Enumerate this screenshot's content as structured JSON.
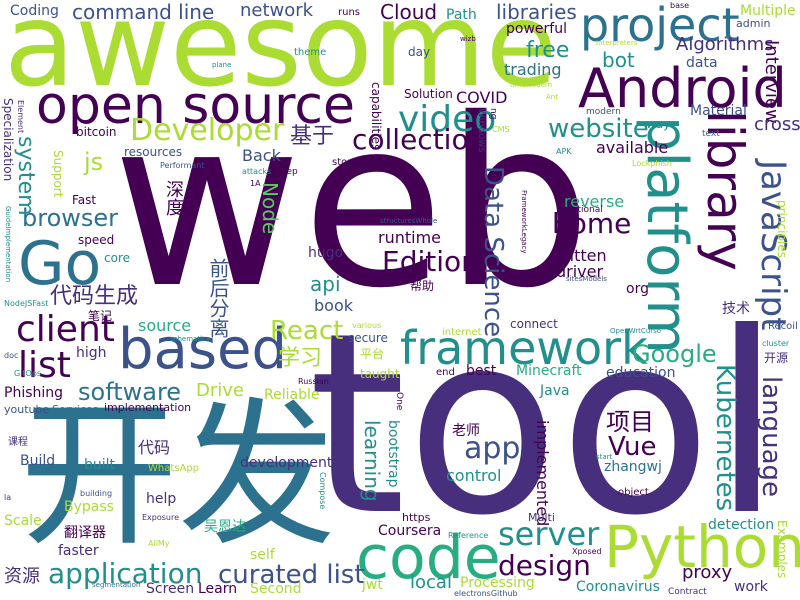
{
  "title": "",
  "palette": {
    "dark_purple": "#440154",
    "indigo": "#472f7d",
    "blue": "#3b528b",
    "steel": "#2c728e",
    "teal": "#21908d",
    "green_teal": "#27ad81",
    "green": "#5dc962",
    "lime": "#aadc32",
    "yellow_green": "#c8e020"
  },
  "words": [
    {
      "text": "web",
      "color": "#440154",
      "vertical": false
    },
    {
      "text": "tool",
      "color": "#472f7d",
      "vertical": false
    },
    {
      "text": "awesome",
      "color": "#aadc32",
      "vertical": false
    },
    {
      "text": "开发",
      "color": "#2c728e",
      "vertical": false
    },
    {
      "text": "open source",
      "color": "#440154",
      "vertical": false
    },
    {
      "text": "Android",
      "color": "#440154",
      "vertical": false
    },
    {
      "text": "project",
      "color": "#2c728e",
      "vertical": false
    },
    {
      "text": "platform",
      "color": "#21908d",
      "vertical": true
    },
    {
      "text": "library",
      "color": "#440154",
      "vertical": true
    },
    {
      "text": "Go",
      "color": "#2c728e",
      "vertical": false
    },
    {
      "text": "based",
      "color": "#3b528b",
      "vertical": false
    },
    {
      "text": "framework",
      "color": "#21908d",
      "vertical": false
    },
    {
      "text": "code",
      "color": "#27ad81",
      "vertical": false
    },
    {
      "text": "Python",
      "color": "#aadc32",
      "vertical": false
    },
    {
      "text": "JavaScript",
      "color": "#3b528b",
      "vertical": true
    },
    {
      "text": "Developer",
      "color": "#aadc32",
      "vertical": false
    },
    {
      "text": "video",
      "color": "#21908d",
      "vertical": false
    },
    {
      "text": "collection",
      "color": "#440154",
      "vertical": false
    },
    {
      "text": "website",
      "color": "#21908d",
      "vertical": false
    },
    {
      "text": "client",
      "color": "#440154",
      "vertical": false
    },
    {
      "text": "list",
      "color": "#440154",
      "vertical": false
    },
    {
      "text": "server",
      "color": "#21908d",
      "vertical": false
    },
    {
      "text": "application",
      "color": "#21908d",
      "vertical": false
    },
    {
      "text": "curated list",
      "color": "#3b528b",
      "vertical": false
    },
    {
      "text": "design",
      "color": "#440154",
      "vertical": false
    },
    {
      "text": "language",
      "color": "#472f7d",
      "vertical": true
    },
    {
      "text": "Kubernetes",
      "color": "#21908d",
      "vertical": true
    },
    {
      "text": "Data Science",
      "color": "#3b528b",
      "vertical": true
    },
    {
      "text": "home",
      "color": "#440154",
      "vertical": false
    },
    {
      "text": "Edition",
      "color": "#440154",
      "vertical": false
    },
    {
      "text": "app",
      "color": "#3b528b",
      "vertical": false
    },
    {
      "text": "Vue",
      "color": "#440154",
      "vertical": false
    },
    {
      "text": "项目",
      "color": "#440154",
      "vertical": false
    },
    {
      "text": "Google",
      "color": "#27ad81",
      "vertical": false
    },
    {
      "text": "React",
      "color": "#aadc32",
      "vertical": false
    },
    {
      "text": "software",
      "color": "#2c728e",
      "vertical": false
    },
    {
      "text": "browser",
      "color": "#2c728e",
      "vertical": false
    },
    {
      "text": "js",
      "color": "#aadc32",
      "vertical": false
    },
    {
      "text": "system",
      "color": "#21908d",
      "vertical": true
    },
    {
      "text": "libraries",
      "color": "#3b528b",
      "vertical": false
    },
    {
      "text": "command line",
      "color": "#3b528b",
      "vertical": false
    },
    {
      "text": "network",
      "color": "#3b528b",
      "vertical": false
    },
    {
      "text": "Cloud",
      "color": "#440154",
      "vertical": false
    },
    {
      "text": "free",
      "color": "#21908d",
      "vertical": false
    },
    {
      "text": "bot",
      "color": "#21908d",
      "vertical": false
    },
    {
      "text": "Algorithms",
      "color": "#472f7d",
      "vertical": false
    },
    {
      "text": "Interview",
      "color": "#440154",
      "vertical": true
    },
    {
      "text": "cross",
      "color": "#472f7d",
      "vertical": false
    },
    {
      "text": "Material",
      "color": "#3b528b",
      "vertical": false
    },
    {
      "text": "trading",
      "color": "#2c728e",
      "vertical": false
    },
    {
      "text": "COVID",
      "color": "#440154",
      "vertical": false
    },
    {
      "text": "基于",
      "color": "#472f7d",
      "vertical": false
    },
    {
      "text": "代码生成",
      "color": "#472f7d",
      "vertical": false
    },
    {
      "text": "前后分离",
      "color": "#3b528b",
      "vertical": true
    },
    {
      "text": "学习",
      "color": "#aadc32",
      "vertical": false
    },
    {
      "text": "Node",
      "color": "#5dc962",
      "vertical": true
    },
    {
      "text": "api",
      "color": "#21908d",
      "vertical": false
    },
    {
      "text": "book",
      "color": "#3b528b",
      "vertical": false
    },
    {
      "text": "source",
      "color": "#27ad81",
      "vertical": false
    },
    {
      "text": "hugo",
      "color": "#472f7d",
      "vertical": false
    },
    {
      "text": "一款",
      "color": "#440154",
      "vertical": false
    },
    {
      "text": "runtime",
      "color": "#440154",
      "vertical": false
    },
    {
      "text": "reverse",
      "color": "#27ad81",
      "vertical": false
    },
    {
      "text": "written",
      "color": "#440154",
      "vertical": false
    },
    {
      "text": "driver",
      "color": "#440154",
      "vertical": false
    },
    {
      "text": "org",
      "color": "#440154",
      "vertical": false
    },
    {
      "text": "技术",
      "color": "#472f7d",
      "vertical": false
    },
    {
      "text": "available",
      "color": "#440154",
      "vertical": false
    },
    {
      "text": "Minecraft",
      "color": "#27ad81",
      "vertical": false
    },
    {
      "text": "education",
      "color": "#3b528b",
      "vertical": false
    },
    {
      "text": "learning",
      "color": "#21908d",
      "vertical": true
    },
    {
      "text": "implemented",
      "color": "#440154",
      "vertical": true
    },
    {
      "text": "bootstrap",
      "color": "#21908d",
      "vertical": true
    },
    {
      "text": "control",
      "color": "#21908d",
      "vertical": false
    },
    {
      "text": "老师",
      "color": "#440154",
      "vertical": false
    },
    {
      "text": "zhangwj",
      "color": "#2c728e",
      "vertical": false
    },
    {
      "text": "proxy",
      "color": "#440154",
      "vertical": false
    },
    {
      "text": "detection",
      "color": "#21908d",
      "vertical": false
    },
    {
      "text": "Coursera",
      "color": "#440154",
      "vertical": false
    },
    {
      "text": "local",
      "color": "#21908d",
      "vertical": false
    },
    {
      "text": "Processing",
      "color": "#aadc32",
      "vertical": false
    },
    {
      "text": "Coronavirus",
      "color": "#21908d",
      "vertical": false
    },
    {
      "text": "work",
      "color": "#472f7d",
      "vertical": false
    },
    {
      "text": "Screen",
      "color": "#472f7d",
      "vertical": false
    },
    {
      "text": "Learn",
      "color": "#440154",
      "vertical": false
    },
    {
      "text": "Second",
      "color": "#aadc32",
      "vertical": false
    },
    {
      "text": "jwt",
      "color": "#aadc32",
      "vertical": false
    },
    {
      "text": "资源",
      "color": "#472f7d",
      "vertical": false
    },
    {
      "text": "faster",
      "color": "#472f7d",
      "vertical": false
    },
    {
      "text": "翻译器",
      "color": "#440154",
      "vertical": false
    },
    {
      "text": "吴恩达",
      "color": "#27ad81",
      "vertical": false
    },
    {
      "text": "self",
      "color": "#aadc32",
      "vertical": false
    },
    {
      "text": "help",
      "color": "#472f7d",
      "vertical": false
    },
    {
      "text": "Scale",
      "color": "#aadc32",
      "vertical": false
    },
    {
      "text": "Bypass",
      "color": "#aadc32",
      "vertical": false
    },
    {
      "text": "development",
      "color": "#472f7d",
      "vertical": false
    },
    {
      "text": "built",
      "color": "#21908d",
      "vertical": false
    },
    {
      "text": "Build",
      "color": "#3b528b",
      "vertical": false
    },
    {
      "text": "代码",
      "color": "#472f7d",
      "vertical": false
    },
    {
      "text": "Phishing",
      "color": "#440154",
      "vertical": false
    },
    {
      "text": "youtube",
      "color": "#3b528b",
      "vertical": false
    },
    {
      "text": "Services",
      "color": "#2c728e",
      "vertical": false
    },
    {
      "text": "implementation",
      "color": "#440154",
      "vertical": false
    },
    {
      "text": "Drive",
      "color": "#aadc32",
      "vertical": false
    },
    {
      "text": "Reliable",
      "color": "#aadc32",
      "vertical": false
    },
    {
      "text": "high",
      "color": "#472f7d",
      "vertical": false
    },
    {
      "text": "secure",
      "color": "#3b528b",
      "vertical": false
    },
    {
      "text": "taught",
      "color": "#aadc32",
      "vertical": false
    },
    {
      "text": "best",
      "color": "#440154",
      "vertical": false
    },
    {
      "text": "Java",
      "color": "#21908d",
      "vertical": false
    },
    {
      "text": "平台",
      "color": "#aadc32",
      "vertical": false
    },
    {
      "text": "connect",
      "color": "#472f7d",
      "vertical": false
    },
    {
      "text": "帮助",
      "color": "#440154",
      "vertical": false
    },
    {
      "text": "深度",
      "color": "#440154",
      "vertical": true
    },
    {
      "text": "Back",
      "color": "#3b528b",
      "vertical": false
    },
    {
      "text": "resources",
      "color": "#3b528b",
      "vertical": false
    },
    {
      "text": "Solution",
      "color": "#440154",
      "vertical": false
    },
    {
      "text": "powerful",
      "color": "#440154",
      "vertical": false
    },
    {
      "text": "capabilities",
      "color": "#440154",
      "vertical": true
    },
    {
      "text": "Windows",
      "color": "#472f7d",
      "vertical": true
    },
    {
      "text": "Path",
      "color": "#21908d",
      "vertical": false
    },
    {
      "text": "runs",
      "color": "#440154",
      "vertical": false
    },
    {
      "text": "Coding",
      "color": "#3b528b",
      "vertical": false
    },
    {
      "text": "data",
      "color": "#3b528b",
      "vertical": false
    },
    {
      "text": "Multiple",
      "color": "#aadc32",
      "vertical": false
    },
    {
      "text": "admin",
      "color": "#3b528b",
      "vertical": false
    },
    {
      "text": "theme",
      "color": "#21908d",
      "vertical": false
    },
    {
      "text": "day",
      "color": "#3b528b",
      "vertical": false
    },
    {
      "text": "bitcoin",
      "color": "#440154",
      "vertical": false
    },
    {
      "text": "Fast",
      "color": "#440154",
      "vertical": false
    },
    {
      "text": "Support",
      "color": "#aadc32",
      "vertical": true
    },
    {
      "text": "Specialization",
      "color": "#472f7d",
      "vertical": true
    },
    {
      "text": "speed",
      "color": "#440154",
      "vertical": false
    },
    {
      "text": "core",
      "color": "#21908d",
      "vertical": false
    },
    {
      "text": "笔记",
      "color": "#440154",
      "vertical": false
    },
    {
      "text": "storage",
      "color": "#440154",
      "vertical": false
    },
    {
      "text": "keep",
      "color": "#440154",
      "vertical": false
    },
    {
      "text": "way",
      "color": "#21908d",
      "vertical": false
    },
    {
      "text": "text",
      "color": "#2c728e",
      "vertical": false
    },
    {
      "text": "modern",
      "color": "#3b528b",
      "vertical": false
    },
    {
      "text": "functional",
      "color": "#440154",
      "vertical": false
    },
    {
      "text": "principles",
      "color": "#aadc32",
      "vertical": true
    },
    {
      "text": "Examples",
      "color": "#aadc32",
      "vertical": true
    },
    {
      "text": "开源",
      "color": "#472f7d",
      "vertical": false
    },
    {
      "text": "Recoil",
      "color": "#3b528b",
      "vertical": false
    },
    {
      "text": "cluster",
      "color": "#21908d",
      "vertical": false
    },
    {
      "text": "Xposed",
      "color": "#440154",
      "vertical": false
    },
    {
      "text": "Multi",
      "color": "#472f7d",
      "vertical": false
    },
    {
      "text": "https",
      "color": "#440154",
      "vertical": false
    },
    {
      "text": "object",
      "color": "#440154",
      "vertical": false
    },
    {
      "text": "start",
      "color": "#21908d",
      "vertical": false
    },
    {
      "text": "Reference",
      "color": "#21908d",
      "vertical": false
    },
    {
      "text": "internet",
      "color": "#aadc32",
      "vertical": false
    },
    {
      "text": "One",
      "color": "#440154",
      "vertical": true
    },
    {
      "text": "end",
      "color": "#440154",
      "vertical": false
    },
    {
      "text": "Russian",
      "color": "#440154",
      "vertical": false
    },
    {
      "text": "WhatsApp",
      "color": "#aadc32",
      "vertical": false
    },
    {
      "text": "Exposure",
      "color": "#472f7d",
      "vertical": false
    },
    {
      "text": "building",
      "color": "#3b528b",
      "vertical": false
    },
    {
      "text": "Compose",
      "color": "#21908d",
      "vertical": true
    },
    {
      "text": "课程",
      "color": "#472f7d",
      "vertical": false
    },
    {
      "text": "segmentation",
      "color": "#2c728e",
      "vertical": false
    },
    {
      "text": "Contract",
      "color": "#472f7d",
      "vertical": false
    },
    {
      "text": "electronsGithub",
      "color": "#3b528b",
      "vertical": false
    },
    {
      "text": "OpenWrtCurso",
      "color": "#21908d",
      "vertical": false
    },
    {
      "text": "GitOps",
      "color": "#21908d",
      "vertical": false
    },
    {
      "text": "doc",
      "color": "#3b528b",
      "vertical": false
    },
    {
      "text": "GuideImplementation",
      "color": "#21908d",
      "vertical": true
    },
    {
      "text": "NodeJSFast",
      "color": "#21908d",
      "vertical": false
    },
    {
      "text": "Element",
      "color": "#472f7d",
      "vertical": true
    },
    {
      "text": "la",
      "color": "#472f7d",
      "vertical": false
    },
    {
      "text": "Performant",
      "color": "#3b528b",
      "vertical": false
    },
    {
      "text": "attacks",
      "color": "#21908d",
      "vertical": false
    },
    {
      "text": "schematica",
      "color": "#21908d",
      "vertical": false
    },
    {
      "text": "various",
      "color": "#aadc32",
      "vertical": false
    },
    {
      "text": "structuresWhole",
      "color": "#3b528b",
      "vertical": false
    },
    {
      "text": "sitesModels",
      "color": "#3b528b",
      "vertical": false
    },
    {
      "text": "Lockphish",
      "color": "#aadc32",
      "vertical": false
    },
    {
      "text": "APK",
      "color": "#21908d",
      "vertical": false
    },
    {
      "text": "CMS",
      "color": "#aadc32",
      "vertical": false
    },
    {
      "text": "Interpreters",
      "color": "#aadc32",
      "vertical": false
    },
    {
      "text": "plane",
      "color": "#21908d",
      "vertical": false
    },
    {
      "text": "timeModern",
      "color": "#aadc32",
      "vertical": false
    },
    {
      "text": "Ant",
      "color": "#aadc32",
      "vertical": false
    },
    {
      "text": "base",
      "color": "#440154",
      "vertical": false
    },
    {
      "text": "wizb",
      "color": "#440154",
      "vertical": false
    },
    {
      "text": "1A",
      "color": "#440154",
      "vertical": false
    },
    {
      "text": "ng",
      "color": "#440154",
      "vertical": true
    },
    {
      "text": "FrameworkLegacy",
      "color": "#440154",
      "vertical": true
    },
    {
      "text": "AllMy",
      "color": "#aadc32",
      "vertical": false
    }
  ]
}
